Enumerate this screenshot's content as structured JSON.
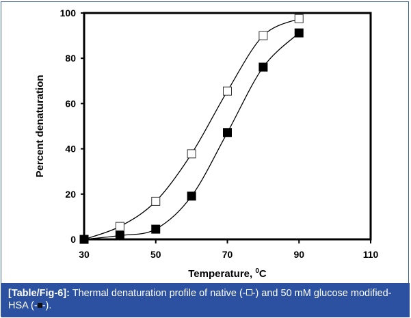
{
  "chart_data": {
    "type": "line",
    "title": "",
    "xlabel": "Temperature, 0C",
    "xlabel_main": "Temperature, ",
    "xlabel_sup": "0",
    "xlabel_unit": "C",
    "ylabel": "Percent denaturation",
    "xlim": [
      30,
      110
    ],
    "ylim": [
      0,
      100
    ],
    "xticks": [
      "30",
      "50",
      "70",
      "90",
      "110"
    ],
    "yticks": [
      "0",
      "20",
      "40",
      "60",
      "80",
      "100"
    ],
    "grid": false,
    "x": [
      30,
      40,
      50,
      60,
      70,
      80,
      90
    ],
    "series": [
      {
        "name": "native",
        "marker": "open-square",
        "values": [
          0,
          5.7,
          16.8,
          37.8,
          65.5,
          90,
          97.5
        ]
      },
      {
        "name": "50 mM glucose modified-HSA",
        "marker": "filled-square",
        "values": [
          0,
          1.7,
          4.5,
          19.1,
          47.2,
          76.1,
          91.2
        ]
      }
    ]
  },
  "caption": {
    "label": "[Table/Fig-6]:",
    "text_1": " Thermal denaturation profile of native (-",
    "text_2": "-) and 50 mM glucose modified-HSA (-",
    "text_3": "-)."
  }
}
